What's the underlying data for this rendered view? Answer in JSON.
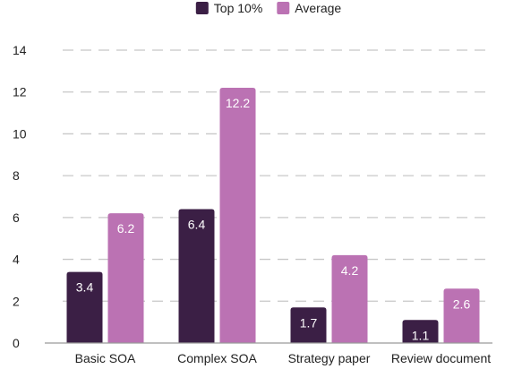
{
  "chart_data": {
    "type": "bar",
    "categories": [
      "Basic SOA",
      "Complex SOA",
      "Strategy paper",
      "Review document"
    ],
    "series": [
      {
        "name": "Top 10%",
        "values": [
          3.4,
          6.4,
          1.7,
          1.1
        ],
        "color": "#3b1f45"
      },
      {
        "name": "Average",
        "values": [
          6.2,
          12.2,
          4.2,
          2.6
        ],
        "color": "#bb72b3"
      }
    ],
    "ylim": [
      0,
      14
    ],
    "yticks": [
      0,
      2,
      4,
      6,
      8,
      10,
      12,
      14
    ],
    "grid": true,
    "legend": "top-center",
    "data_labels": true
  }
}
